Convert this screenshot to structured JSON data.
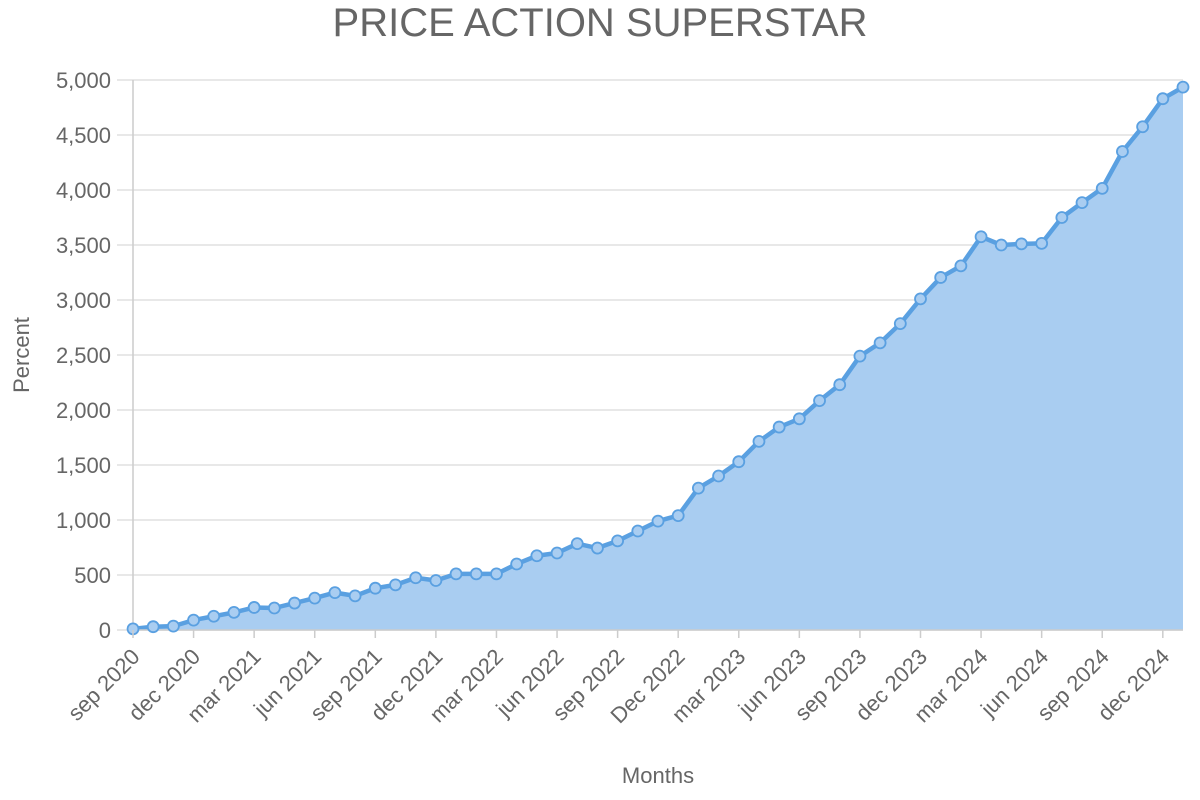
{
  "chart_data": {
    "type": "area",
    "title": "PRICE ACTION SUPERSTAR",
    "xlabel": "Months",
    "ylabel": "Percent",
    "ylim": [
      0,
      5000
    ],
    "y_ticks": [
      0,
      500,
      1000,
      1500,
      2000,
      2500,
      3000,
      3500,
      4000,
      4500,
      5000
    ],
    "y_tick_labels": [
      "0",
      "500",
      "1,000",
      "1,500",
      "2,000",
      "2,500",
      "3,000",
      "3,500",
      "4,000",
      "4,500",
      "5,000"
    ],
    "x_tick_labels": [
      "sep 2020",
      "dec 2020",
      "mar 2021",
      "jun 2021",
      "sep 2021",
      "dec 2021",
      "mar 2022",
      "jun 2022",
      "sep 2022",
      "Dec 2022",
      "mar 2023",
      "jun 2023",
      "sep 2023",
      "dec 2023",
      "mar 2024",
      "jun 2024",
      "sep 2024",
      "dec 2024"
    ],
    "series": [
      {
        "values": [
          10,
          30,
          35,
          90,
          125,
          160,
          205,
          200,
          245,
          290,
          340,
          310,
          380,
          410,
          475,
          450,
          510,
          510,
          510,
          600,
          675,
          700,
          785,
          745,
          810,
          900,
          990,
          1040,
          1290,
          1400,
          1530,
          1715,
          1845,
          1920,
          2085,
          2230,
          2490,
          2610,
          2785,
          3010,
          3205,
          3310,
          3575,
          3500,
          3510,
          3515,
          3750,
          3885,
          4015,
          4350,
          4575,
          4830,
          4935
        ]
      }
    ],
    "grid": true,
    "legend": "none",
    "colors": {
      "line": "#5aa0e1",
      "fill": "#a9cdf1"
    }
  }
}
